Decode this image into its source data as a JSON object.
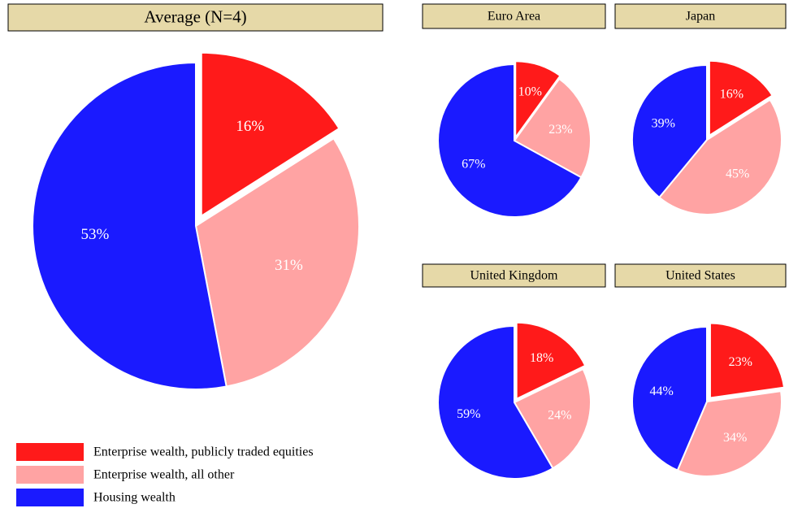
{
  "chart_data": [
    {
      "type": "pie",
      "title": "Average (N=4)",
      "categories": [
        "Enterprise wealth, publicly traded equities",
        "Enterprise wealth, all other",
        "Housing wealth"
      ],
      "colors": [
        "#ff1a1a",
        "#ffa3a3",
        "#1a1aff"
      ],
      "values": [
        16,
        31,
        53
      ],
      "value_labels": [
        "16%",
        "31%",
        "53%"
      ]
    },
    {
      "type": "pie",
      "title": "Euro Area",
      "colors": [
        "#ff1a1a",
        "#ffa3a3",
        "#1a1aff"
      ],
      "values": [
        10,
        23,
        67
      ],
      "value_labels": [
        "10%",
        "23%",
        "67%"
      ]
    },
    {
      "type": "pie",
      "title": "Japan",
      "colors": [
        "#ff1a1a",
        "#ffa3a3",
        "#1a1aff"
      ],
      "values": [
        16,
        45,
        39
      ],
      "value_labels": [
        "16%",
        "45%",
        "39%"
      ]
    },
    {
      "type": "pie",
      "title": "United Kingdom",
      "colors": [
        "#ff1a1a",
        "#ffa3a3",
        "#1a1aff"
      ],
      "values": [
        18,
        24,
        59
      ],
      "value_labels": [
        "18%",
        "24%",
        "59%"
      ]
    },
    {
      "type": "pie",
      "title": "United States",
      "colors": [
        "#ff1a1a",
        "#ffa3a3",
        "#1a1aff"
      ],
      "values": [
        23,
        34,
        44
      ],
      "value_labels": [
        "23%",
        "34%",
        "44%"
      ]
    }
  ]
}
